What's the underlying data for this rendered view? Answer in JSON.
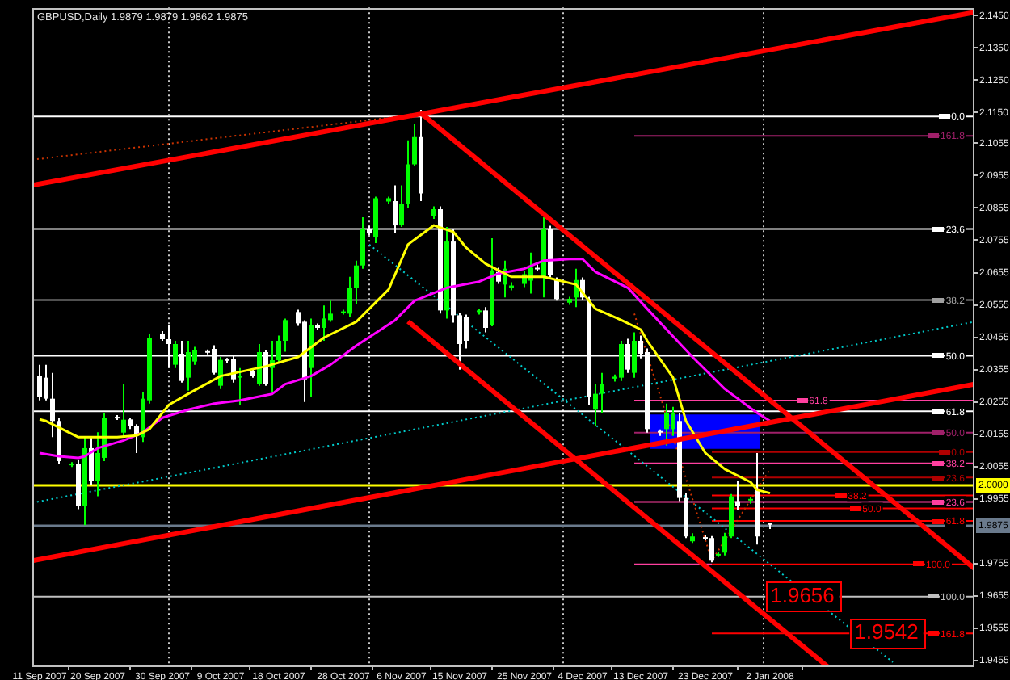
{
  "chart_data": {
    "type": "candlestick",
    "title": "GBPUSD,Daily 1.9879 1.9879 1.9862 1.9875",
    "legend": "right",
    "x": [
      "2007-09-11",
      "2007-09-12",
      "2007-09-13",
      "2007-09-14",
      "2007-09-16",
      "2007-09-17",
      "2007-09-18",
      "2007-09-19",
      "2007-09-20",
      "2007-09-21",
      "2007-09-23",
      "2007-09-24",
      "2007-09-25",
      "2007-09-26",
      "2007-09-27",
      "2007-09-28",
      "2007-09-30",
      "2007-10-01",
      "2007-10-02",
      "2007-10-03",
      "2007-10-04",
      "2007-10-05",
      "2007-10-07",
      "2007-10-08",
      "2007-10-09",
      "2007-10-10",
      "2007-10-11",
      "2007-10-12",
      "2007-10-14",
      "2007-10-15",
      "2007-10-16",
      "2007-10-17",
      "2007-10-18",
      "2007-10-19",
      "2007-10-21",
      "2007-10-22",
      "2007-10-23",
      "2007-10-24",
      "2007-10-25",
      "2007-10-26",
      "2007-10-28",
      "2007-10-29",
      "2007-10-30",
      "2007-10-31",
      "2007-11-01",
      "2007-11-02",
      "2007-11-04",
      "2007-11-05",
      "2007-11-06",
      "2007-11-07",
      "2007-11-08",
      "2007-11-09",
      "2007-11-11",
      "2007-11-12",
      "2007-11-13",
      "2007-11-14",
      "2007-11-15",
      "2007-11-16",
      "2007-11-18",
      "2007-11-19",
      "2007-11-20",
      "2007-11-21",
      "2007-11-22",
      "2007-11-23",
      "2007-11-25",
      "2007-11-26",
      "2007-11-27",
      "2007-11-28",
      "2007-11-29",
      "2007-11-30",
      "2007-12-02",
      "2007-12-03",
      "2007-12-04",
      "2007-12-05",
      "2007-12-06",
      "2007-12-07",
      "2007-12-09",
      "2007-12-10",
      "2007-12-11",
      "2007-12-12",
      "2007-12-13",
      "2007-12-14",
      "2007-12-16",
      "2007-12-17",
      "2007-12-18",
      "2007-12-19",
      "2007-12-20",
      "2007-12-21",
      "2007-12-23",
      "2007-12-24",
      "2007-12-25",
      "2007-12-26",
      "2007-12-27",
      "2007-12-28",
      "2007-12-30",
      "2007-12-31",
      "2008-01-02"
    ],
    "ohlc": [
      [
        2.0335,
        2.037,
        2.026,
        2.027
      ],
      [
        2.033,
        2.037,
        2.026,
        2.0265
      ],
      [
        2.0265,
        2.0345,
        2.0146,
        2.0196
      ],
      [
        2.0196,
        2.0206,
        2.0062,
        2.0072
      ],
      [
        2.0059,
        2.0069,
        2.0054,
        2.0064
      ],
      [
        2.0062,
        2.0077,
        1.9923,
        1.9933
      ],
      [
        1.9933,
        2.0146,
        1.9874,
        2.0112
      ],
      [
        2.0112,
        2.0146,
        1.9998,
        2.0012
      ],
      [
        2.0012,
        2.0161,
        1.9963,
        2.0097
      ],
      [
        2.0082,
        2.0221,
        2.0072,
        2.0206
      ],
      [
        2.0209,
        2.0214,
        2.0199,
        2.0204
      ],
      [
        2.016,
        2.031,
        2.0146,
        2.02
      ],
      [
        2.0201,
        2.0206,
        2.0171,
        2.0181
      ],
      [
        2.0181,
        2.0186,
        2.0097,
        2.0156
      ],
      [
        2.0146,
        2.0285,
        2.0131,
        2.0265
      ],
      [
        2.026,
        2.0464,
        2.025,
        2.0454
      ],
      [
        2.0464,
        2.0474,
        2.0444,
        2.0449
      ],
      [
        2.0449,
        2.0494,
        2.036,
        2.0434
      ],
      [
        2.037,
        2.0444,
        2.036,
        2.0434
      ],
      [
        2.0404,
        2.0444,
        2.0315,
        2.032
      ],
      [
        2.033,
        2.0444,
        2.029,
        2.0409
      ],
      [
        2.038,
        2.0425,
        2.037,
        2.0414
      ],
      [
        2.0412,
        2.0417,
        2.0402,
        2.0407
      ],
      [
        2.0419,
        2.043,
        2.034,
        2.0345
      ],
      [
        2.0305,
        2.0394,
        2.0295,
        2.0385
      ],
      [
        2.0387,
        2.0391,
        2.0376,
        2.0382
      ],
      [
        2.0389,
        2.0399,
        2.0315,
        2.0325
      ],
      [
        2.033,
        2.036,
        2.0246,
        2.0335
      ],
      [
        2.035,
        2.0355,
        2.033,
        2.0335
      ],
      [
        2.031,
        2.0434,
        2.0305,
        2.0409
      ],
      [
        2.0409,
        2.0414,
        2.0305,
        2.031
      ],
      [
        2.036,
        2.0444,
        2.0285,
        2.0384
      ],
      [
        2.0384,
        2.046,
        2.0375,
        2.0444
      ],
      [
        2.0444,
        2.0513,
        2.041,
        2.0508
      ],
      [
        2.0533,
        2.054,
        2.049,
        2.0498
      ],
      [
        2.0503,
        2.0508,
        2.0255,
        2.0325
      ],
      [
        2.036,
        2.0513,
        2.027,
        2.0494
      ],
      [
        2.0494,
        2.0498,
        2.0479,
        2.0484
      ],
      [
        2.0484,
        2.0553,
        2.0444,
        2.0513
      ],
      [
        2.0508,
        2.0568,
        2.0503,
        2.0528
      ],
      [
        2.053,
        2.054,
        2.0525,
        2.0535
      ],
      [
        2.0528,
        2.0642,
        2.0518,
        2.0608
      ],
      [
        2.0608,
        2.0692,
        2.0558,
        2.0677
      ],
      [
        2.0677,
        2.0826,
        2.0667,
        2.0791
      ],
      [
        2.0791,
        2.08,
        2.077,
        2.0776
      ],
      [
        2.0766,
        2.089,
        2.0746,
        2.0885
      ],
      [
        2.0875,
        2.089,
        2.0868,
        2.0885
      ],
      [
        2.0876,
        2.0925,
        2.0776,
        2.0801
      ],
      [
        2.0801,
        2.0925,
        2.0796,
        2.0866
      ],
      [
        2.0866,
        2.1064,
        2.0856,
        2.099
      ],
      [
        2.099,
        2.1114,
        2.0985,
        2.1074
      ],
      [
        2.1074,
        2.1158,
        2.0876,
        2.09
      ],
      [
        2.0831,
        2.086,
        2.0821,
        2.0851
      ],
      [
        2.0851,
        2.086,
        2.0528,
        2.0538
      ],
      [
        2.0538,
        2.0796,
        2.0513,
        2.0751
      ],
      [
        2.0751,
        2.0791,
        2.05,
        2.0523
      ],
      [
        2.0523,
        2.053,
        2.0355,
        2.0434
      ],
      [
        2.0518,
        2.0525,
        2.042,
        2.0444
      ],
      [
        2.0533,
        2.0543,
        2.0525,
        2.0538
      ],
      [
        2.0538,
        2.0548,
        2.047,
        2.0484
      ],
      [
        2.0494,
        2.0761,
        2.0489,
        2.0662
      ],
      [
        2.0657,
        2.067,
        2.062,
        2.0627
      ],
      [
        2.0618,
        2.0692,
        2.0578,
        2.0667
      ],
      [
        2.0608,
        2.0625,
        2.06,
        2.0615
      ],
      [
        2.062,
        2.066,
        2.061,
        2.065
      ],
      [
        2.063,
        2.0717,
        2.059,
        2.067
      ],
      [
        2.067,
        2.068,
        2.066,
        2.0665
      ],
      [
        2.0642,
        2.0826,
        2.0578,
        2.0791
      ],
      [
        2.0791,
        2.08,
        2.064,
        2.0647
      ],
      [
        2.0632,
        2.064,
        2.0568,
        2.0573
      ],
      [
        2.0562,
        2.058,
        2.0555,
        2.0574
      ],
      [
        2.0578,
        2.0667,
        2.0548,
        2.0632
      ],
      [
        2.0632,
        2.064,
        2.057,
        2.0578
      ],
      [
        2.0573,
        2.058,
        2.0246,
        2.027
      ],
      [
        2.0231,
        2.031,
        2.0181,
        2.028
      ],
      [
        2.028,
        2.0345,
        2.0221,
        2.031
      ],
      [
        2.0327,
        2.034,
        2.0318,
        2.0333
      ],
      [
        2.033,
        2.0444,
        2.032,
        2.0434
      ],
      [
        2.0434,
        2.045,
        2.0345,
        2.0355
      ],
      [
        2.0345,
        2.047,
        2.033,
        2.0444
      ],
      [
        2.0444,
        2.046,
        2.039,
        2.0404
      ],
      [
        2.0409,
        2.042,
        2.016,
        2.0171
      ],
      [
        2.0165,
        2.017,
        2.015,
        2.016
      ],
      [
        2.0171,
        2.025,
        2.012,
        2.0221
      ],
      [
        2.0171,
        2.024,
        2.015,
        2.0221
      ],
      [
        2.0196,
        2.0221,
        1.9948,
        1.9958
      ],
      [
        1.9958,
        1.9973,
        1.9834,
        1.9839
      ],
      [
        1.9824,
        1.9849,
        1.9819,
        1.9839
      ],
      [
        1.9837,
        1.9842,
        1.9827,
        1.9832
      ],
      [
        1.9834,
        1.984,
        1.9759,
        1.9764
      ],
      [
        1.978,
        1.979,
        1.9775,
        1.9785
      ],
      [
        1.9789,
        1.985,
        1.978,
        1.9839
      ],
      [
        1.9839,
        1.997,
        1.9834,
        1.9963
      ],
      [
        1.9948,
        2.001,
        1.992,
        1.9933
      ],
      [
        1.995,
        1.996,
        1.994,
        1.9955
      ],
      [
        1.9983,
        2.0097,
        1.9814,
        1.9839
      ],
      [
        1.9879,
        1.9879,
        1.9862,
        1.9875
      ]
    ],
    "colors": [
      "#ffffff",
      "#ffffff",
      "#ffffff",
      "#ffffff",
      "#00ff00",
      "#ffffff",
      "#00ff00",
      "#ffffff",
      "#00ff00",
      "#00ff00",
      "#ffffff",
      "#00ff00",
      "#ffffff",
      "#ffffff",
      "#00ff00",
      "#00ff00",
      "#ffffff",
      "#ffffff",
      "#00ff00",
      "#ffffff",
      "#00ff00",
      "#00ff00",
      "#ffffff",
      "#ffffff",
      "#00ff00",
      "#ffffff",
      "#ffffff",
      "#00ff00",
      "#ffffff",
      "#00ff00",
      "#ffffff",
      "#00ff00",
      "#00ff00",
      "#00ff00",
      "#ffffff",
      "#ffffff",
      "#00ff00",
      "#ffffff",
      "#00ff00",
      "#00ff00",
      "#00ff00",
      "#00ff00",
      "#00ff00",
      "#00ff00",
      "#ffffff",
      "#00ff00",
      "#00ff00",
      "#ffffff",
      "#00ff00",
      "#00ff00",
      "#00ff00",
      "#ffffff",
      "#00ff00",
      "#ffffff",
      "#00ff00",
      "#ffffff",
      "#ffffff",
      "#ffffff",
      "#00ff00",
      "#ffffff",
      "#00ff00",
      "#ffffff",
      "#00ff00",
      "#00ff00",
      "#00ff00",
      "#00ff00",
      "#ffffff",
      "#00ff00",
      "#ffffff",
      "#ffffff",
      "#00ff00",
      "#00ff00",
      "#ffffff",
      "#ffffff",
      "#00ff00",
      "#00ff00",
      "#00ff00",
      "#00ff00",
      "#ffffff",
      "#00ff00",
      "#ffffff",
      "#ffffff",
      "#ffffff",
      "#00ff00",
      "#00ff00",
      "#ffffff",
      "#ffffff",
      "#00ff00",
      "#ffffff",
      "#ffffff",
      "#00ff00",
      "#00ff00",
      "#00ff00",
      "#ffffff",
      "#00ff00",
      "#ffffff",
      "#ffffff"
    ],
    "series": [
      {
        "type": "line",
        "color": "#0000ff",
        "x": [
          "2007-12-14T12:00",
          "2007-12-31T12:00"
        ],
        "values": [
          null,
          null
        ],
        "lower": [
          2.011,
          2.011
        ],
        "upper": [
          2.0216,
          2.0216
        ]
      },
      {
        "type": "line",
        "color": "#ffff00",
        "x": [
          "2007-09-11",
          "2007-09-12",
          "2007-09-17",
          "2007-09-23",
          "2007-09-26",
          "2007-09-28",
          "2007-10-01",
          "2007-10-04",
          "2007-10-09",
          "2007-10-16",
          "2007-10-21",
          "2007-10-25",
          "2007-10-30",
          "2007-11-04",
          "2007-11-07",
          "2007-11-11",
          "2007-11-14",
          "2007-11-16",
          "2007-11-19",
          "2007-11-23",
          "2007-11-28",
          "2007-12-03",
          "2007-12-06",
          "2007-12-10",
          "2007-12-13",
          "2007-12-14",
          "2007-12-18",
          "2007-12-20",
          "2007-12-23",
          "2007-12-26",
          "2007-12-30",
          "2007-12-31",
          "2008-01-02"
        ],
        "values": [
          2.0201,
          2.0196,
          2.0146,
          2.0146,
          2.0151,
          2.0171,
          2.0246,
          2.028,
          2.0335,
          2.0365,
          2.0394,
          2.0454,
          2.0503,
          2.0603,
          2.0742,
          2.0801,
          2.0781,
          2.0732,
          2.0682,
          2.0642,
          2.0642,
          2.0618,
          2.0543,
          2.0508,
          2.0479,
          2.0444,
          2.033,
          2.0196,
          2.0097,
          2.0047,
          2.0007,
          1.9983,
          1.9973
        ]
      },
      {
        "type": "line",
        "color": "#ff00ff",
        "x": [
          "2007-09-11",
          "2007-09-14",
          "2007-09-17",
          "2007-09-18",
          "2007-09-20",
          "2007-09-24",
          "2007-09-27",
          "2007-09-30",
          "2007-10-04",
          "2007-10-08",
          "2007-10-12",
          "2007-10-17",
          "2007-10-19",
          "2007-10-23",
          "2007-10-26",
          "2007-10-30",
          "2007-11-05",
          "2007-11-08",
          "2007-11-13",
          "2007-11-18",
          "2007-11-21",
          "2007-11-25",
          "2007-11-28",
          "2007-12-02",
          "2007-12-04",
          "2007-12-06",
          "2007-12-11",
          "2007-12-14",
          "2007-12-17",
          "2007-12-21",
          "2007-12-26",
          "2007-12-31",
          "2008-01-02"
        ],
        "values": [
          2.0097,
          2.0087,
          2.0082,
          2.0087,
          2.0112,
          2.0136,
          2.0161,
          2.0206,
          2.0231,
          2.025,
          2.026,
          2.028,
          2.031,
          2.0335,
          2.037,
          2.0429,
          2.0508,
          2.0568,
          2.0608,
          2.0627,
          2.0652,
          2.0667,
          2.0692,
          2.0697,
          2.0697,
          2.0657,
          2.0608,
          2.0543,
          2.0479,
          2.0394,
          2.0295,
          2.0221,
          2.0196
        ]
      },
      {
        "type": "line",
        "color": "#cc3300",
        "line_style": "dotted",
        "x": [
          "2007-09-09T21:00",
          "2007-11-08"
        ],
        "values": [
          2.1004,
          2.1143
        ]
      },
      {
        "type": "line",
        "color": "#00cccc",
        "line_style": "dotted",
        "x": [
          "2007-09-09T21:00",
          "2008-02-02T15:00"
        ],
        "values": [
          1.9943,
          2.0503
        ]
      },
      {
        "type": "line",
        "color": "#00cccc",
        "line_style": "dotted",
        "x": [
          "2007-11-01",
          "2008-01-21"
        ],
        "values": [
          2.0742,
          1.945
        ]
      },
      {
        "type": "line",
        "color": "#cc3300",
        "line_style": "dotted",
        "x": [
          "2007-12-12",
          "2007-12-24",
          "2008-01-02"
        ],
        "values": [
          2.0528,
          1.9764,
          2.0047
        ]
      },
      {
        "type": "line",
        "name": "0.0",
        "color": "#ffffff",
        "x": [
          "2007-09-09T21:00",
          "2008-02-02T15:00"
        ],
        "values": [
          2.1138,
          2.1138
        ]
      },
      {
        "type": "line",
        "name": "23.6",
        "color": "#ffffff",
        "x": [
          "2007-09-09T21:00",
          "2008-02-02T15:00"
        ],
        "values": [
          2.079,
          2.079
        ]
      },
      {
        "type": "line",
        "name": "38.2",
        "color": "#a0a0a0",
        "x": [
          "2007-09-09T21:00",
          "2008-02-02T15:00"
        ],
        "values": [
          2.057,
          2.057
        ]
      },
      {
        "type": "line",
        "name": "50.0",
        "color": "#ffffff",
        "x": [
          "2007-09-09T21:00",
          "2008-02-02T15:00"
        ],
        "values": [
          2.0398,
          2.0398
        ]
      },
      {
        "type": "line",
        "name": "61.8",
        "color": "#ffffff",
        "x": [
          "2007-09-09T21:00",
          "2008-02-02T15:00"
        ],
        "values": [
          2.0226,
          2.0226
        ]
      },
      {
        "type": "line",
        "name": "100.0",
        "color": "#c0c0c0",
        "x": [
          "2007-09-09T21:00",
          "2008-02-02T15:00"
        ],
        "values": [
          1.9653,
          1.9653
        ]
      },
      {
        "type": "line",
        "name": "161.8",
        "color": "#a0206a",
        "x": [
          "2007-12-12",
          "2008-02-02T15:00"
        ],
        "values": [
          2.1078,
          2.1078
        ]
      },
      {
        "type": "line",
        "name": "61.8",
        "color": "#ff40a0",
        "x": [
          "2007-12-12",
          "2008-02-02T15:00"
        ],
        "values": [
          2.0259,
          2.0259
        ]
      },
      {
        "type": "line",
        "name": "50.0",
        "color": "#a0206a",
        "x": [
          "2007-12-12",
          "2008-02-02T15:00"
        ],
        "values": [
          2.016,
          2.016
        ]
      },
      {
        "type": "line",
        "name": "38.2",
        "color": "#ff40a0",
        "x": [
          "2007-12-12",
          "2008-02-02T15:00"
        ],
        "values": [
          2.0065,
          2.0065
        ]
      },
      {
        "type": "line",
        "name": "23.6",
        "color": "#ff40a0",
        "x": [
          "2007-12-12",
          "2008-02-02T15:00"
        ],
        "values": [
          1.9946,
          1.9946
        ]
      },
      {
        "type": "line",
        "color": "#ff40a0",
        "line_style": "solid",
        "x": [
          "2007-12-12",
          "2007-12-24"
        ],
        "values": [
          1.9753,
          1.9753
        ]
      },
      {
        "type": "line",
        "name": "0.0",
        "color": "#b00000",
        "x": [
          "2007-12-24",
          "2008-02-02T15:00"
        ],
        "values": [
          2.01,
          2.01
        ]
      },
      {
        "type": "line",
        "name": "23.6",
        "color": "#b00000",
        "x": [
          "2007-12-24",
          "2008-02-02T15:00"
        ],
        "values": [
          2.0021,
          2.0021
        ]
      },
      {
        "type": "line",
        "name": "38.2",
        "color": "#ff0000",
        "x": [
          "2007-12-24",
          "2008-02-02T15:00"
        ],
        "values": [
          1.9966,
          1.9966
        ]
      },
      {
        "type": "line",
        "name": "50.0",
        "color": "#ff0000",
        "x": [
          "2007-12-24",
          "2008-02-02T15:00"
        ],
        "values": [
          1.9926,
          1.9926
        ]
      },
      {
        "type": "line",
        "name": "61.8",
        "color": "#ff0000",
        "x": [
          "2007-12-24",
          "2008-02-02T15:00"
        ],
        "values": [
          1.9887,
          1.9887
        ]
      },
      {
        "type": "line",
        "name": "100.0",
        "color": "#ff0000",
        "x": [
          "2007-12-24",
          "2008-02-02T15:00"
        ],
        "values": [
          1.9753,
          1.9753
        ]
      },
      {
        "type": "line",
        "name": "161.8",
        "color": "#ff0000",
        "x": [
          "2007-12-24",
          "2008-02-02T15:00"
        ],
        "values": [
          1.9539,
          1.9539
        ]
      },
      {
        "type": "line",
        "color": "#ff0000",
        "x": [
          "2007-09-09T21:00",
          "2008-02-02T15:00"
        ],
        "values": [
          2.0925,
          2.146
        ]
      },
      {
        "type": "line",
        "color": "#ff0000",
        "x": [
          "2007-11-09",
          "2008-02-02T15:00"
        ],
        "values": [
          2.1148,
          1.974
        ]
      },
      {
        "type": "line",
        "color": "#ff0000",
        "x": [
          "2007-11-07",
          "2008-01-11"
        ],
        "values": [
          2.0504,
          1.9435
        ]
      },
      {
        "type": "line",
        "color": "#ff0000",
        "x": [
          "2007-09-09T21:00",
          "2008-02-02T15:00"
        ],
        "values": [
          1.9764,
          2.031
        ]
      }
    ],
    "ref_lines": [
      {
        "axis": "x",
        "value": "2007-10-01",
        "color": "#c8c8c8",
        "line_style": "dotted"
      },
      {
        "axis": "x",
        "value": "2007-11-01",
        "color": "#c8c8c8",
        "line_style": "dotted"
      },
      {
        "axis": "x",
        "value": "2007-12-01",
        "color": "#c8c8c8",
        "line_style": "dotted"
      },
      {
        "axis": "x",
        "value": "2008-01-01",
        "color": "#c8c8c8",
        "line_style": "dotted"
      },
      {
        "axis": "y",
        "value": 2.0,
        "label": "2.0000",
        "color": "#ffff00"
      },
      {
        "axis": "y",
        "value": 1.9875,
        "label": "1.9875",
        "color": "#6a7a8c"
      }
    ],
    "annotations": [
      {
        "text": "1.9656",
        "x": "2008-01-07",
        "y": 1.9656
      },
      {
        "text": "1.9542",
        "x": "2008-01-20",
        "y": 1.9542
      }
    ],
    "xlim": [
      "2007-09-09T21:00",
      "2008-02-02T15:00"
    ],
    "xticks": [
      {
        "value": "2007-09-11",
        "label": "11 Sep 2007"
      },
      {
        "value": "2007-09-20",
        "label": "20 Sep 2007"
      },
      {
        "value": "2007-09-30",
        "label": "30 Sep 2007"
      },
      {
        "value": "2007-10-09",
        "label": "9 Oct 2007"
      },
      {
        "value": "2007-10-18",
        "label": "18 Oct 2007"
      },
      {
        "value": "2007-10-28",
        "label": "28 Oct 2007"
      },
      {
        "value": "2007-11-06",
        "label": "6 Nov 2007"
      },
      {
        "value": "2007-11-15",
        "label": "15 Nov 2007"
      },
      {
        "value": "2007-11-25",
        "label": "25 Nov 2007"
      },
      {
        "value": "2007-12-04",
        "label": "4 Dec 2007"
      },
      {
        "value": "2007-12-13",
        "label": "13 Dec 2007"
      },
      {
        "value": "2007-12-23",
        "label": "23 Dec 2007"
      },
      {
        "value": "2008-01-02",
        "label": "2 Jan 2008"
      }
    ],
    "ylim": [
      1.9435,
      2.1475
    ],
    "yticks": [
      {
        "value": 2.145,
        "label": "2.1450"
      },
      {
        "value": 2.135,
        "label": "2.1350"
      },
      {
        "value": 2.125,
        "label": "2.1250"
      },
      {
        "value": 2.115,
        "label": "2.1150"
      },
      {
        "value": 2.1055,
        "label": "2.1055"
      },
      {
        "value": 2.0955,
        "label": "2.0955"
      },
      {
        "value": 2.0855,
        "label": "2.0855"
      },
      {
        "value": 2.0755,
        "label": "2.0755"
      },
      {
        "value": 2.0655,
        "label": "2.0655"
      },
      {
        "value": 2.0555,
        "label": "2.0555"
      },
      {
        "value": 2.0455,
        "label": "2.0455"
      },
      {
        "value": 2.0355,
        "label": "2.0355"
      },
      {
        "value": 2.0255,
        "label": "2.0255"
      },
      {
        "value": 2.0155,
        "label": "2.0155"
      },
      {
        "value": 2.0055,
        "label": "2.0055"
      },
      {
        "value": 1.9955,
        "label": "1.9955"
      },
      {
        "value": 1.9755,
        "label": "1.9755"
      },
      {
        "value": 1.9655,
        "label": "1.9655"
      },
      {
        "value": 1.9555,
        "label": "1.9555"
      },
      {
        "value": 1.9455,
        "label": "1.9455"
      }
    ]
  }
}
